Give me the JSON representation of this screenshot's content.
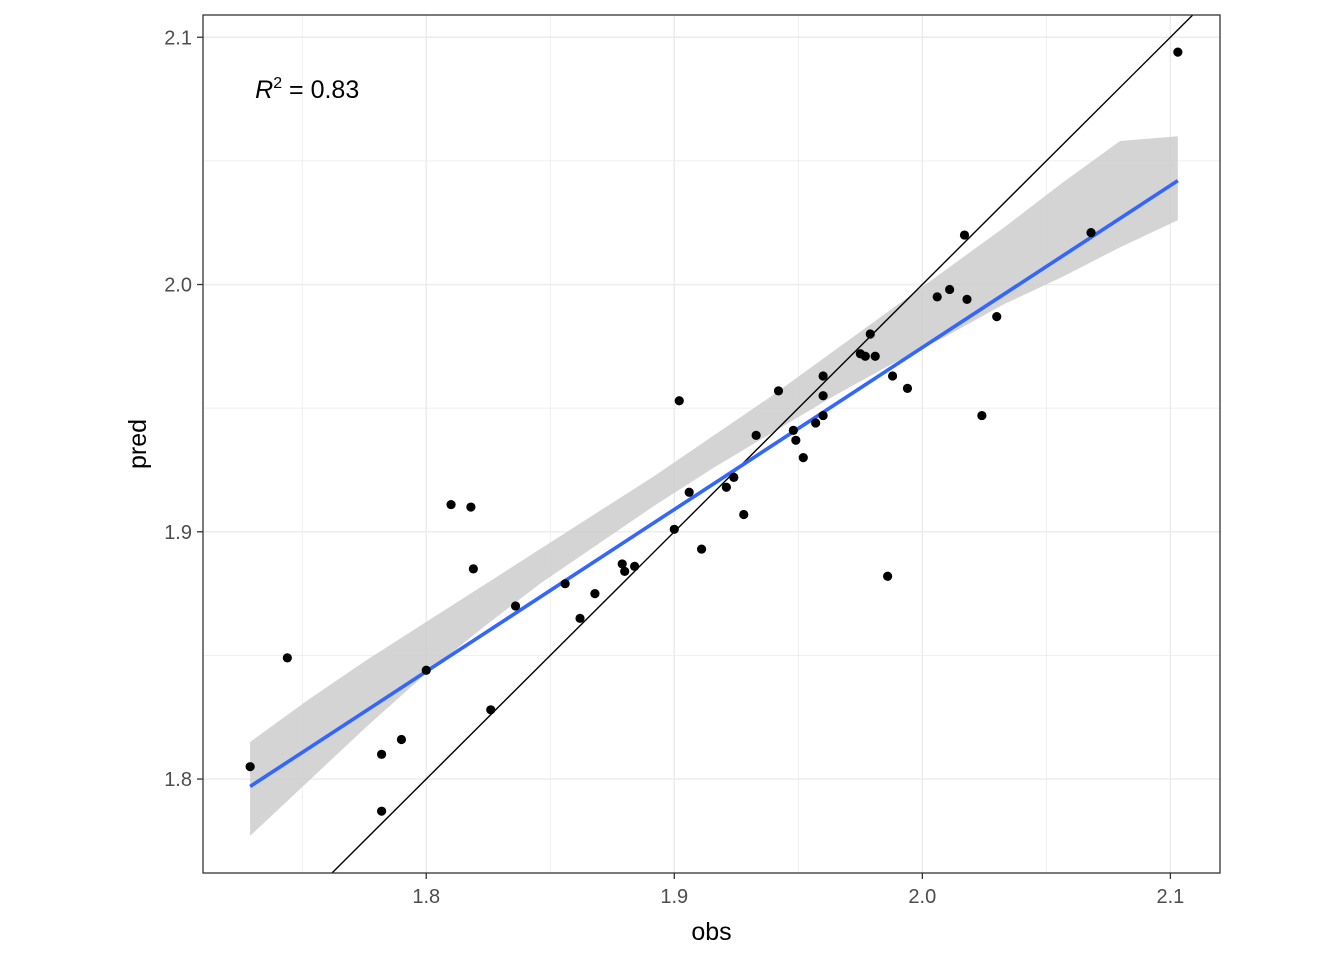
{
  "chart_data": {
    "type": "scatter",
    "xlabel": "obs",
    "ylabel": "pred",
    "xlim": [
      1.71,
      2.12
    ],
    "ylim": [
      1.762,
      2.109
    ],
    "x_ticks": [
      1.8,
      1.9,
      2.0,
      2.1
    ],
    "y_ticks": [
      1.8,
      1.9,
      2.0,
      2.1
    ],
    "x_tick_labels": [
      "1.8",
      "1.9",
      "2.0",
      "2.1"
    ],
    "y_tick_labels": [
      "1.8",
      "1.9",
      "2.0",
      "2.1"
    ],
    "grid": true,
    "annotation": {
      "r_symbol": "R",
      "superscript": "2",
      "text": " = 0.83",
      "x": 1.729,
      "y": 2.079
    },
    "identity_line": true,
    "regression": {
      "x_range": [
        1.729,
        2.103
      ],
      "fit_start": 1.797,
      "fit_end": 2.042,
      "ci_lower": [
        1.777,
        1.799,
        1.821,
        1.842,
        1.861,
        1.879,
        1.895,
        1.911,
        1.926,
        1.94,
        1.954,
        1.967,
        1.979,
        1.992,
        2.003,
        2.015,
        2.026
      ],
      "ci_upper": [
        1.815,
        1.832,
        1.848,
        1.863,
        1.878,
        1.893,
        1.908,
        1.923,
        1.939,
        1.955,
        1.972,
        1.989,
        2.006,
        2.023,
        2.041,
        2.058,
        2.06
      ]
    },
    "colors": {
      "points": "#000000",
      "fit": "#3366ff",
      "ci": "#cccccc",
      "identity": "#000000",
      "grid": "#ebebeb"
    },
    "points": [
      {
        "x": 1.729,
        "y": 1.805
      },
      {
        "x": 1.744,
        "y": 1.849
      },
      {
        "x": 1.782,
        "y": 1.81
      },
      {
        "x": 1.782,
        "y": 1.787
      },
      {
        "x": 1.79,
        "y": 1.816
      },
      {
        "x": 1.8,
        "y": 1.844
      },
      {
        "x": 1.81,
        "y": 1.911
      },
      {
        "x": 1.818,
        "y": 1.91
      },
      {
        "x": 1.819,
        "y": 1.885
      },
      {
        "x": 1.826,
        "y": 1.828
      },
      {
        "x": 1.836,
        "y": 1.87
      },
      {
        "x": 1.856,
        "y": 1.879
      },
      {
        "x": 1.862,
        "y": 1.865
      },
      {
        "x": 1.868,
        "y": 1.875
      },
      {
        "x": 1.879,
        "y": 1.887
      },
      {
        "x": 1.88,
        "y": 1.884
      },
      {
        "x": 1.884,
        "y": 1.886
      },
      {
        "x": 1.9,
        "y": 1.901
      },
      {
        "x": 1.902,
        "y": 1.953
      },
      {
        "x": 1.906,
        "y": 1.916
      },
      {
        "x": 1.911,
        "y": 1.893
      },
      {
        "x": 1.921,
        "y": 1.918
      },
      {
        "x": 1.924,
        "y": 1.922
      },
      {
        "x": 1.928,
        "y": 1.907
      },
      {
        "x": 1.933,
        "y": 1.939
      },
      {
        "x": 1.942,
        "y": 1.957
      },
      {
        "x": 1.948,
        "y": 1.941
      },
      {
        "x": 1.949,
        "y": 1.937
      },
      {
        "x": 1.952,
        "y": 1.93
      },
      {
        "x": 1.957,
        "y": 1.944
      },
      {
        "x": 1.96,
        "y": 1.947
      },
      {
        "x": 1.96,
        "y": 1.955
      },
      {
        "x": 1.96,
        "y": 1.963
      },
      {
        "x": 1.975,
        "y": 1.972
      },
      {
        "x": 1.977,
        "y": 1.971
      },
      {
        "x": 1.979,
        "y": 1.98
      },
      {
        "x": 1.981,
        "y": 1.971
      },
      {
        "x": 1.986,
        "y": 1.882
      },
      {
        "x": 1.988,
        "y": 1.963
      },
      {
        "x": 1.994,
        "y": 1.958
      },
      {
        "x": 2.006,
        "y": 1.995
      },
      {
        "x": 2.011,
        "y": 1.998
      },
      {
        "x": 2.017,
        "y": 2.02
      },
      {
        "x": 2.018,
        "y": 1.994
      },
      {
        "x": 2.024,
        "y": 1.947
      },
      {
        "x": 2.03,
        "y": 1.987
      },
      {
        "x": 2.068,
        "y": 2.021
      },
      {
        "x": 2.103,
        "y": 2.094
      }
    ]
  }
}
